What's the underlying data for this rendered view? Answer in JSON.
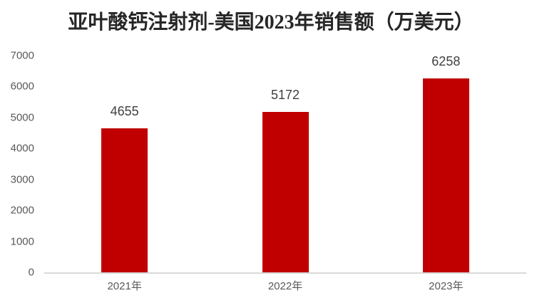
{
  "chart_data": {
    "type": "bar",
    "title": "亚叶酸钙注射剂-美国2023年销售额（万美元）",
    "categories": [
      "2021年",
      "2022年",
      "2023年"
    ],
    "values": [
      4655,
      5172,
      6258
    ],
    "yticks": [
      0,
      1000,
      2000,
      3000,
      4000,
      5000,
      6000,
      7000
    ],
    "ylim": [
      0,
      7000
    ],
    "grid": false,
    "legend": false,
    "xlabel": "",
    "ylabel": "",
    "colors": {
      "bar": "#C00000",
      "background": "#FFFFFF",
      "axis_line": "#D9D9D9",
      "tick_label": "#595959",
      "category_label": "#595959",
      "value_label": "#404040",
      "title": "#262626"
    }
  }
}
